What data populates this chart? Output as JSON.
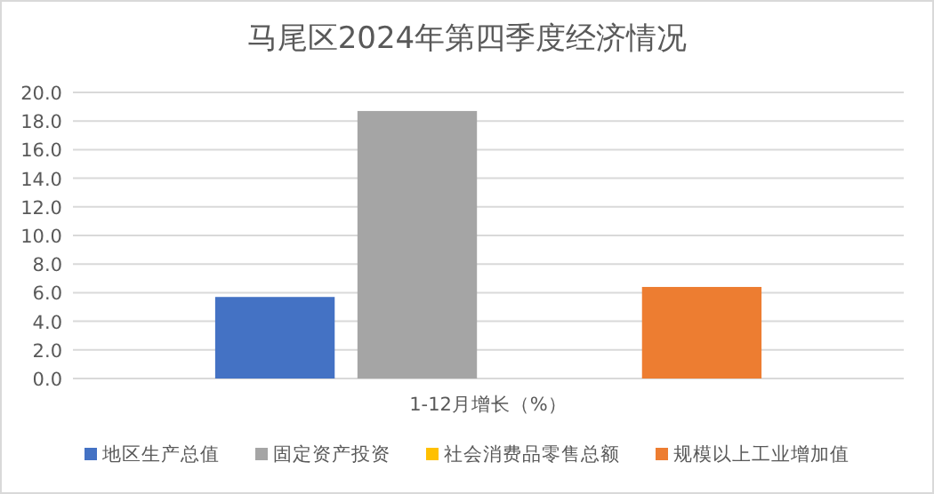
{
  "chart_data": {
    "type": "bar",
    "title": "马尾区2024年第四季度经济情况",
    "categories": [
      "1-12月增长（%）"
    ],
    "series": [
      {
        "name": "地区生产总值",
        "color": "#4472c4",
        "values": [
          5.7
        ]
      },
      {
        "name": "固定资产投资",
        "color": "#a5a5a5",
        "values": [
          18.7
        ]
      },
      {
        "name": "社会消费品零售总额",
        "color": "#ffc000",
        "values": [
          null
        ]
      },
      {
        "name": "规模以上工业增加值",
        "color": "#ed7d31",
        "values": [
          6.4
        ]
      }
    ],
    "ylim": [
      0,
      20
    ],
    "yticks": [
      {
        "value": 0,
        "label": "0.0"
      },
      {
        "value": 2,
        "label": "2.0"
      },
      {
        "value": 4,
        "label": "4.0"
      },
      {
        "value": 6,
        "label": "6.0"
      },
      {
        "value": 8,
        "label": "8.0"
      },
      {
        "value": 10,
        "label": "10.0"
      },
      {
        "value": 12,
        "label": "12.0"
      },
      {
        "value": 14,
        "label": "14.0"
      },
      {
        "value": 16,
        "label": "16.0"
      },
      {
        "value": 18,
        "label": "18.0"
      },
      {
        "value": 20,
        "label": "20.0"
      }
    ],
    "grid": "y",
    "legend": "bottom"
  }
}
